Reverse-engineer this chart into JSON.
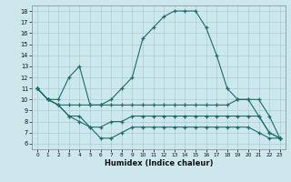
{
  "xlabel": "Humidex (Indice chaleur)",
  "ylabel": "",
  "bg_color": "#cce8ec",
  "line_color": "#1e6b6b",
  "grid_color": "#aacdd4",
  "series": [
    [
      11,
      10,
      10,
      12,
      13,
      9.5,
      9.5,
      10,
      11,
      12,
      15.5,
      16.5,
      17.5,
      18,
      18,
      18,
      16.5,
      14,
      11,
      10,
      10,
      8.5,
      7,
      6.5
    ],
    [
      11,
      10,
      9.5,
      9.5,
      9.5,
      9.5,
      9.5,
      9.5,
      9.5,
      9.5,
      9.5,
      9.5,
      9.5,
      9.5,
      9.5,
      9.5,
      9.5,
      9.5,
      9.5,
      10,
      10,
      10,
      8.5,
      6.5
    ],
    [
      11,
      10,
      9.5,
      8.5,
      8.5,
      7.5,
      7.5,
      8,
      8,
      8.5,
      8.5,
      8.5,
      8.5,
      8.5,
      8.5,
      8.5,
      8.5,
      8.5,
      8.5,
      8.5,
      8.5,
      8.5,
      7,
      6.5
    ],
    [
      11,
      10,
      9.5,
      8.5,
      8,
      7.5,
      6.5,
      6.5,
      7,
      7.5,
      7.5,
      7.5,
      7.5,
      7.5,
      7.5,
      7.5,
      7.5,
      7.5,
      7.5,
      7.5,
      7.5,
      7,
      6.5,
      6.5
    ]
  ],
  "ylim": [
    5.5,
    18.5
  ],
  "yticks": [
    6,
    7,
    8,
    9,
    10,
    11,
    12,
    13,
    14,
    15,
    16,
    17,
    18
  ],
  "xticks": [
    0,
    1,
    2,
    3,
    4,
    5,
    6,
    7,
    8,
    9,
    10,
    11,
    12,
    13,
    14,
    15,
    16,
    17,
    18,
    19,
    20,
    21,
    22,
    23
  ]
}
